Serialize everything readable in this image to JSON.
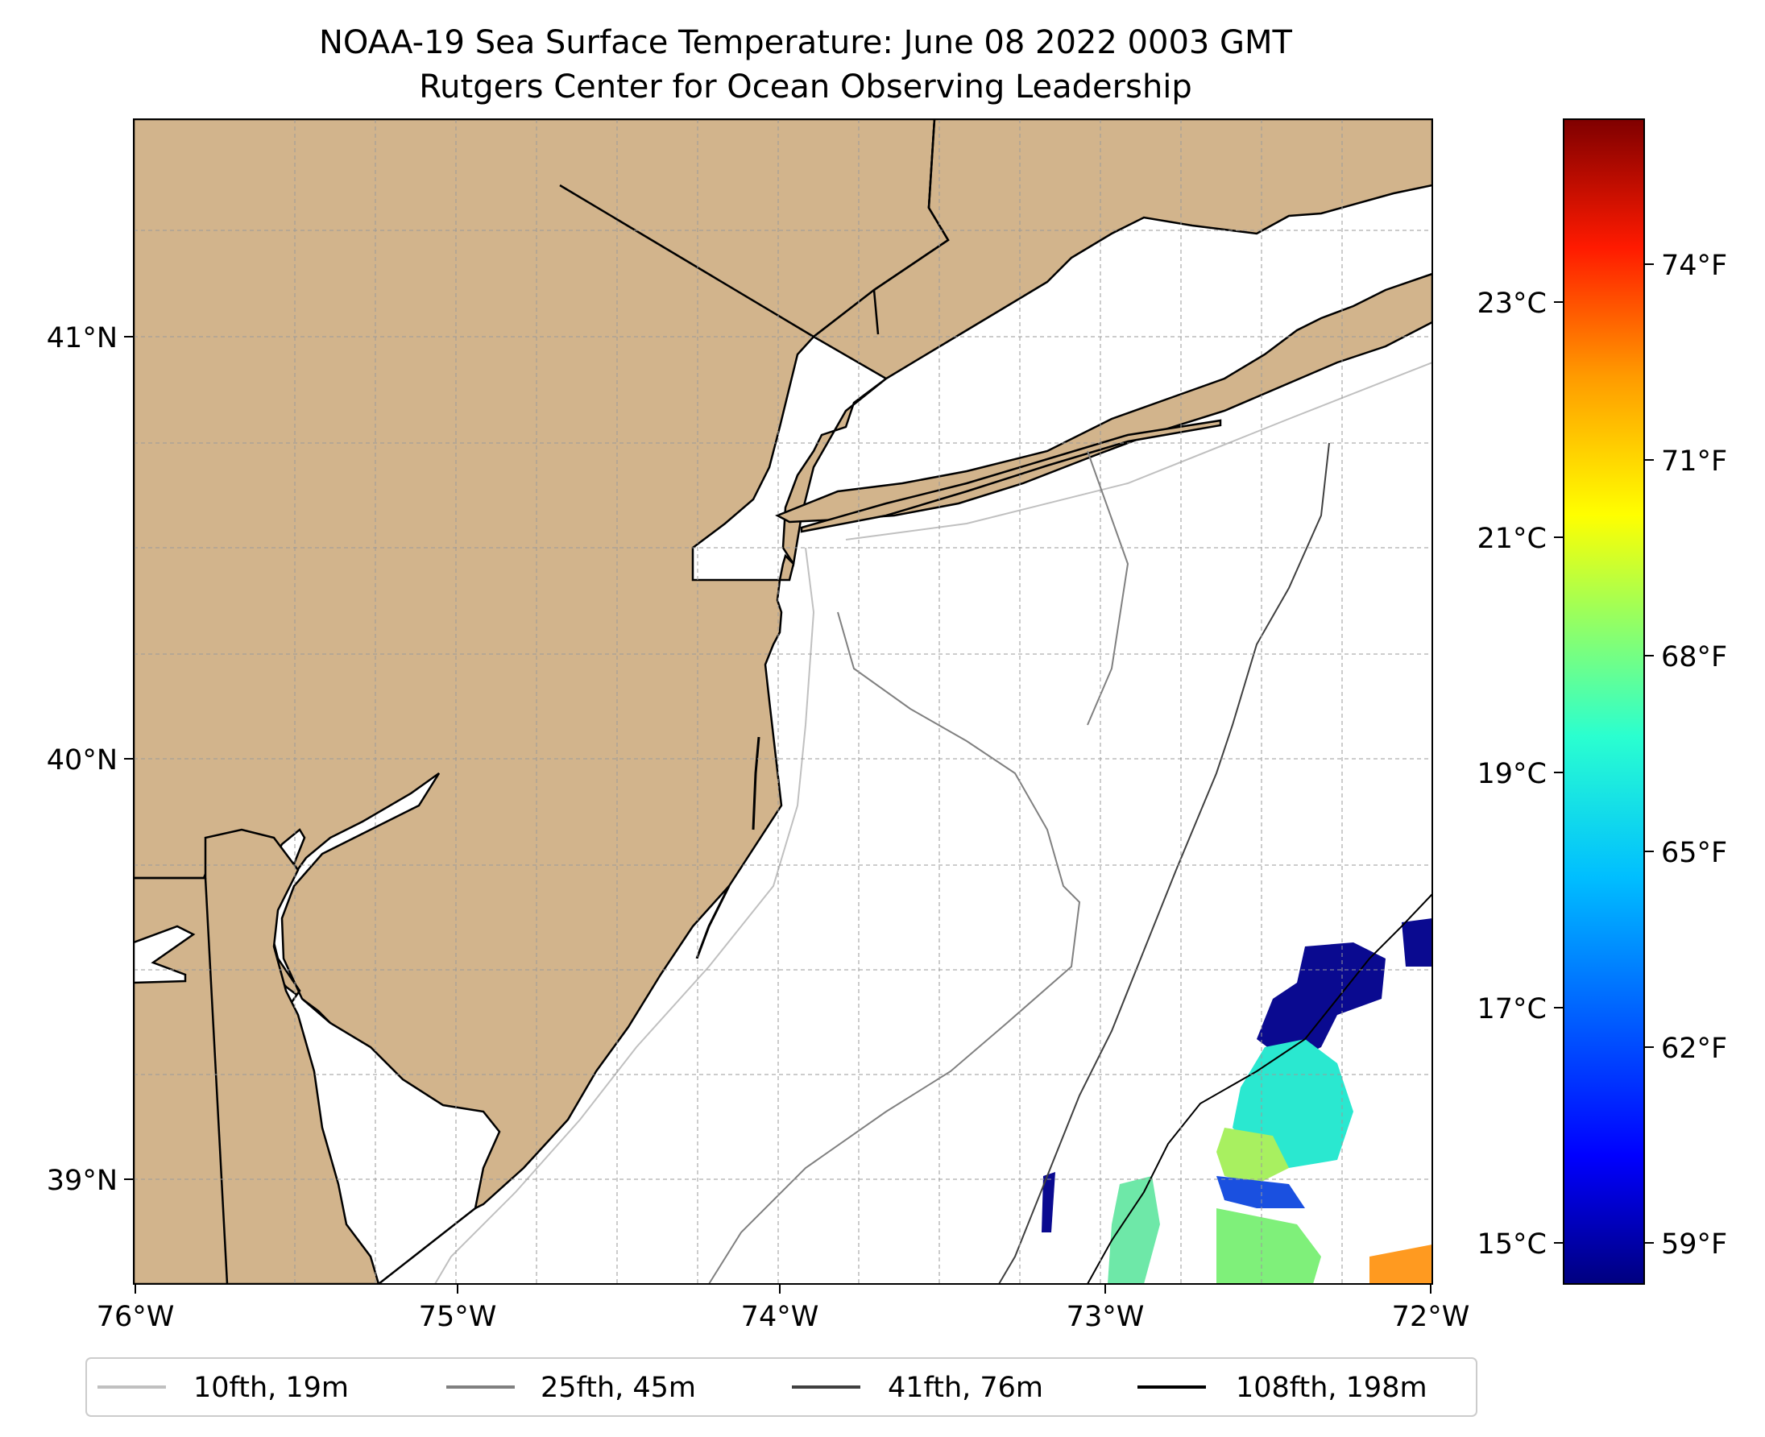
{
  "title": {
    "line1": "NOAA-19 Sea Surface Temperature: June 08 2022 0003 GMT",
    "line2": "Rutgers Center for Ocean Observing Leadership"
  },
  "map": {
    "lon_ticks": [
      "76°W",
      "75°W",
      "74°W",
      "73°W",
      "72°W"
    ],
    "lat_ticks": [
      "41°N",
      "40°N",
      "39°N"
    ],
    "land_color": "#d2b48c",
    "ocean_color": "#ffffff",
    "gridlines": true
  },
  "colorbar": {
    "celsius_ticks": [
      "23°C",
      "21°C",
      "19°C",
      "17°C",
      "15°C"
    ],
    "fahrenheit_ticks": [
      "74°F",
      "71°F",
      "68°F",
      "65°F",
      "62°F",
      "59°F"
    ],
    "colormap": "jet",
    "colors": [
      "#00007f",
      "#0000ff",
      "#007fff",
      "#00ffff",
      "#7fff7f",
      "#ffff00",
      "#ff7f00",
      "#ff0000",
      "#7f0000"
    ]
  },
  "legend": {
    "position": "bottom",
    "items": [
      {
        "label": "10fth, 19m",
        "color": "#c0c0c0"
      },
      {
        "label": "25fth, 45m",
        "color": "#808080"
      },
      {
        "label": "41fth, 76m",
        "color": "#404040"
      },
      {
        "label": "108fth, 198m",
        "color": "#000000"
      }
    ]
  }
}
